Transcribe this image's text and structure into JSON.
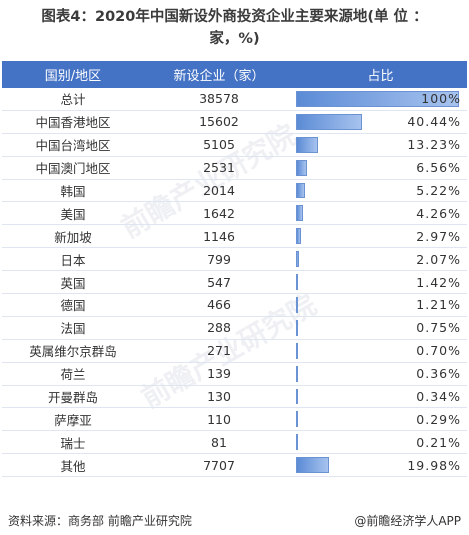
{
  "title": {
    "line1": "图表4：2020年中国新设外商投资企业主要来源地(单 位 ：",
    "line2": "家，%)"
  },
  "columns": [
    "国别/地区",
    "新设企业（家）",
    "占比"
  ],
  "chart_data": {
    "type": "table",
    "title": "图表4：2020年中国新设外商投资企业主要来源地(单 位 ：家，%)",
    "rows": [
      {
        "region": "总计",
        "count": "38578",
        "share": "100%",
        "share_value": 100
      },
      {
        "region": "中国香港地区",
        "count": "15602",
        "share": "40.44%",
        "share_value": 40.44
      },
      {
        "region": "中国台湾地区",
        "count": "5105",
        "share": "13.23%",
        "share_value": 13.23
      },
      {
        "region": "中国澳门地区",
        "count": "2531",
        "share": "6.56%",
        "share_value": 6.56
      },
      {
        "region": "韩国",
        "count": "2014",
        "share": "5.22%",
        "share_value": 5.22
      },
      {
        "region": "美国",
        "count": "1642",
        "share": "4.26%",
        "share_value": 4.26
      },
      {
        "region": "新加坡",
        "count": "1146",
        "share": "2.97%",
        "share_value": 2.97
      },
      {
        "region": "日本",
        "count": "799",
        "share": "2.07%",
        "share_value": 2.07
      },
      {
        "region": "英国",
        "count": "547",
        "share": "1.42%",
        "share_value": 1.42
      },
      {
        "region": "德国",
        "count": "466",
        "share": "1.21%",
        "share_value": 1.21
      },
      {
        "region": "法国",
        "count": "288",
        "share": "0.75%",
        "share_value": 0.75
      },
      {
        "region": "英属维尔京群岛",
        "count": "271",
        "share": "0.70%",
        "share_value": 0.7
      },
      {
        "region": "荷兰",
        "count": "139",
        "share": "0.36%",
        "share_value": 0.36
      },
      {
        "region": "开曼群岛",
        "count": "130",
        "share": "0.34%",
        "share_value": 0.34
      },
      {
        "region": "萨摩亚",
        "count": "110",
        "share": "0.29%",
        "share_value": 0.29
      },
      {
        "region": "瑞士",
        "count": "81",
        "share": "0.21%",
        "share_value": 0.21
      },
      {
        "region": "其他",
        "count": "7707",
        "share": "19.98%",
        "share_value": 19.98
      }
    ]
  },
  "footer": {
    "source": "资料来源：商务部 前瞻产业研究院",
    "brand": "@前瞻经济学人APP"
  },
  "colors": {
    "header_bg": "#4472c4",
    "bar": "#5b8bd6"
  }
}
